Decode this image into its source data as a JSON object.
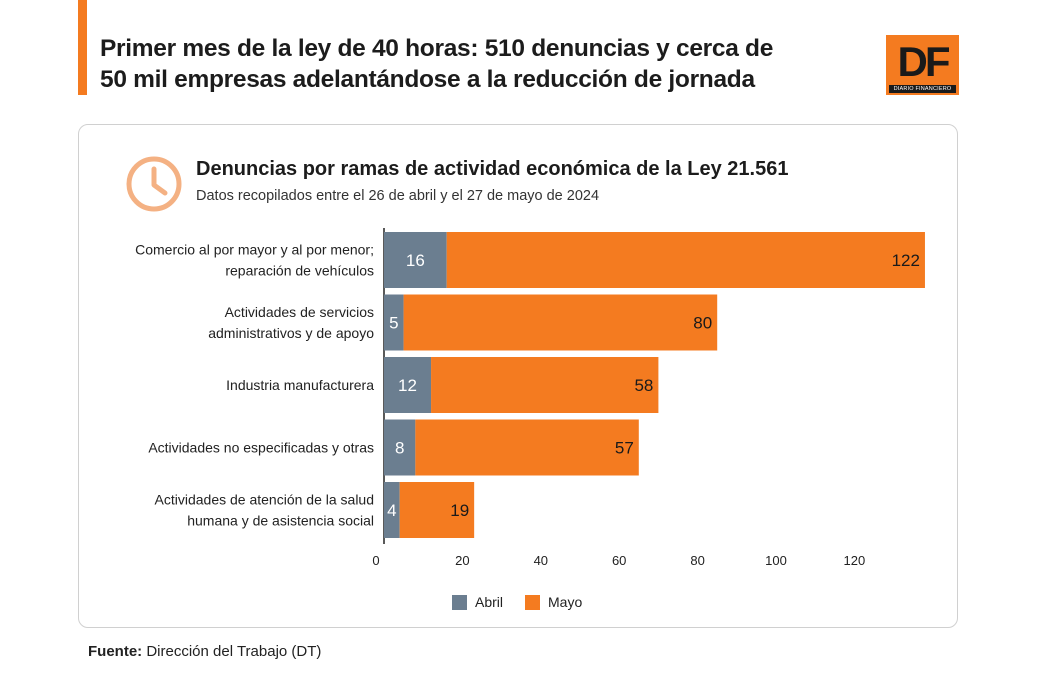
{
  "header": {
    "headline_line1": "Primer mes de la ley de 40 horas: 510 denuncias y cerca de",
    "headline_line2": "50 mil empresas adelantándose a la reducción de jornada",
    "logo_text": "DF",
    "logo_subtext": "DIARIO FINANCIERO"
  },
  "colors": {
    "accent": "#f47b20",
    "abril": "#6b7e90",
    "mayo": "#f47b20"
  },
  "chart_data": {
    "type": "bar",
    "orientation": "horizontal",
    "stacked": true,
    "title": "Denuncias por ramas de actividad económica de la Ley 21.561",
    "subtitle": "Datos recopilados entre el 26 de abril y el 27 de mayo de 2024",
    "categories": [
      [
        "Comercio al por mayor y al por menor;",
        "reparación de vehículos"
      ],
      [
        "Actividades de servicios",
        "administrativos y de apoyo"
      ],
      [
        "Industria manufacturera"
      ],
      [
        "Actividades no especificadas y otras"
      ],
      [
        "Actividades de atención de la salud",
        "humana y de asistencia social"
      ]
    ],
    "series": [
      {
        "name": "Abril",
        "values": [
          16,
          5,
          12,
          8,
          4
        ]
      },
      {
        "name": "Mayo",
        "values": [
          122,
          80,
          58,
          57,
          19
        ]
      }
    ],
    "xlim": [
      0,
      140
    ],
    "xticks": [
      0,
      20,
      40,
      60,
      80,
      100,
      120
    ],
    "legend_position": "bottom"
  },
  "footer": {
    "source_label": "Fuente:",
    "source_text": "Dirección del Trabajo (DT)"
  }
}
